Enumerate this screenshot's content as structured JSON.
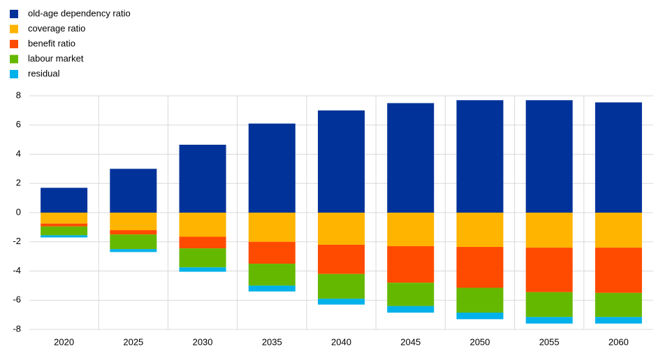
{
  "chart_data": {
    "type": "bar",
    "stacked": true,
    "categories": [
      "2020",
      "2025",
      "2030",
      "2035",
      "2040",
      "2045",
      "2050",
      "2055",
      "2060"
    ],
    "series": [
      {
        "name": "old-age dependency ratio",
        "color": "#003299",
        "values": [
          1.7,
          3.0,
          4.65,
          6.1,
          7.0,
          7.5,
          7.7,
          7.7,
          7.55
        ]
      },
      {
        "name": "coverage ratio",
        "color": "#ffb400",
        "values": [
          -0.75,
          -1.2,
          -1.65,
          -2.0,
          -2.2,
          -2.3,
          -2.35,
          -2.4,
          -2.4
        ]
      },
      {
        "name": "benefit ratio",
        "color": "#ff4b00",
        "values": [
          -0.2,
          -0.3,
          -0.8,
          -1.5,
          -2.0,
          -2.5,
          -2.8,
          -3.05,
          -3.1
        ]
      },
      {
        "name": "labour market",
        "color": "#65b800",
        "values": [
          -0.6,
          -1.0,
          -1.3,
          -1.5,
          -1.7,
          -1.6,
          -1.7,
          -1.7,
          -1.65
        ]
      },
      {
        "name": "residual",
        "color": "#00b1ea",
        "values": [
          -0.15,
          -0.2,
          -0.3,
          -0.4,
          -0.4,
          -0.45,
          -0.45,
          -0.45,
          -0.45
        ]
      }
    ],
    "ylim": [
      -8,
      8
    ],
    "yticks": [
      -8,
      -6,
      -4,
      -2,
      0,
      2,
      4,
      6,
      8
    ],
    "grid": true,
    "legend": "top-left"
  }
}
